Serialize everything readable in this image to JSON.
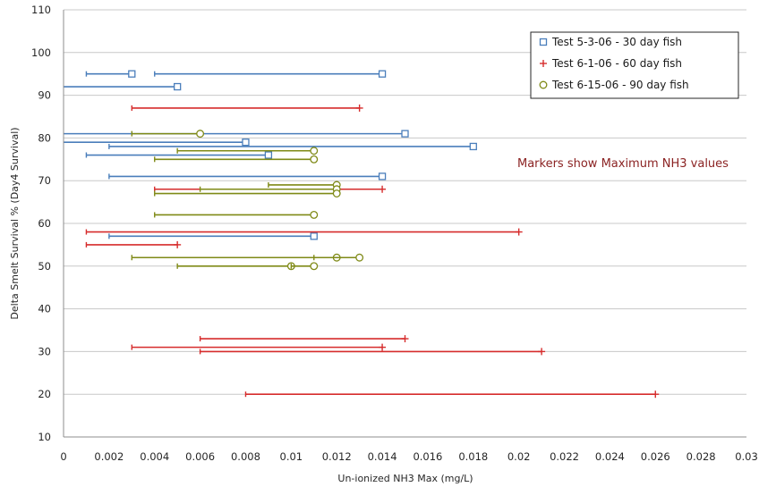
{
  "chart_data": {
    "type": "scatter",
    "title": "",
    "xlabel": "Un-ionized NH3 Max (mg/L)",
    "ylabel": "Delta Smelt Survival % (Day4 Survival)",
    "xlim": [
      0,
      0.03
    ],
    "ylim": [
      10,
      110
    ],
    "x_ticks": [
      "0",
      "0.002",
      "0.004",
      "0.006",
      "0.008",
      "0.01",
      "0.012",
      "0.014",
      "0.016",
      "0.018",
      "0.02",
      "0.022",
      "0.024",
      "0.026",
      "0.028",
      "0.03"
    ],
    "y_ticks": [
      "10",
      "20",
      "30",
      "40",
      "50",
      "60",
      "70",
      "80",
      "90",
      "100",
      "110"
    ],
    "grid": "horizontal",
    "legend_position": "top-right",
    "annotation": "Markers show Maximum NH3 values",
    "series": [
      {
        "name": "Test 5-3-06  - 30 day fish",
        "color": "#4a7ebb",
        "marker": "square",
        "points": [
          {
            "y": 95,
            "min": 0.001,
            "max": 0.003
          },
          {
            "y": 95,
            "min": 0.004,
            "max": 0.014
          },
          {
            "y": 92,
            "min": 0.0,
            "max": 0.005
          },
          {
            "y": 81,
            "min": 0.0,
            "max": 0.015
          },
          {
            "y": 79,
            "min": 0.0,
            "max": 0.008
          },
          {
            "y": 78,
            "min": 0.002,
            "max": 0.018
          },
          {
            "y": 76,
            "min": 0.001,
            "max": 0.009
          },
          {
            "y": 71,
            "min": 0.002,
            "max": 0.014
          },
          {
            "y": 57,
            "min": 0.002,
            "max": 0.011
          }
        ]
      },
      {
        "name": "Test 6-1-06  - 60 day fish",
        "color": "#d62c2c",
        "marker": "plus",
        "points": [
          {
            "y": 87,
            "min": 0.003,
            "max": 0.013
          },
          {
            "y": 68,
            "min": 0.004,
            "max": 0.014
          },
          {
            "y": 58,
            "min": 0.001,
            "max": 0.02
          },
          {
            "y": 55,
            "min": 0.001,
            "max": 0.005
          },
          {
            "y": 33,
            "min": 0.006,
            "max": 0.015
          },
          {
            "y": 31,
            "min": 0.003,
            "max": 0.014
          },
          {
            "y": 30,
            "min": 0.006,
            "max": 0.021
          },
          {
            "y": 20,
            "min": 0.008,
            "max": 0.026
          }
        ]
      },
      {
        "name": "Test 6-15-06 - 90 day fish",
        "color": "#7f8a17",
        "marker": "circle",
        "points": [
          {
            "y": 81,
            "min": 0.003,
            "max": 0.006
          },
          {
            "y": 77,
            "min": 0.005,
            "max": 0.011
          },
          {
            "y": 75,
            "min": 0.004,
            "max": 0.011
          },
          {
            "y": 69,
            "min": 0.009,
            "max": 0.012
          },
          {
            "y": 68,
            "min": 0.006,
            "max": 0.012
          },
          {
            "y": 67,
            "min": 0.004,
            "max": 0.012
          },
          {
            "y": 62,
            "min": 0.004,
            "max": 0.011
          },
          {
            "y": 52,
            "min": 0.003,
            "max": 0.012
          },
          {
            "y": 52,
            "min": 0.011,
            "max": 0.013
          },
          {
            "y": 50,
            "min": 0.005,
            "max": 0.01
          },
          {
            "y": 50,
            "min": 0.01,
            "max": 0.011
          }
        ]
      }
    ]
  }
}
